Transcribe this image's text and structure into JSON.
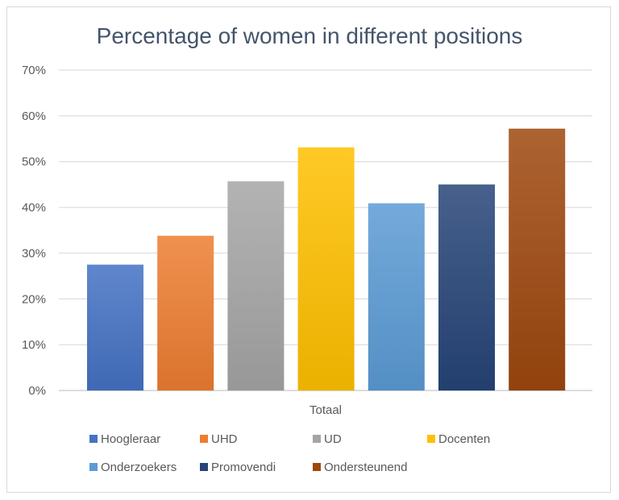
{
  "chart_data": {
    "type": "bar",
    "title": "Percentage of women in different positions",
    "xlabel": "Totaal",
    "ylabel": "",
    "ylim": [
      0,
      70
    ],
    "yticks": [
      "0%",
      "10%",
      "20%",
      "30%",
      "40%",
      "50%",
      "60%",
      "70%"
    ],
    "grid": true,
    "legend_position": "bottom",
    "categories": [
      "Totaal"
    ],
    "series": [
      {
        "name": "Hoogleraar",
        "values": [
          27.5
        ],
        "color": "#4472c4"
      },
      {
        "name": "UHD",
        "values": [
          33.8
        ],
        "color": "#ed7d31"
      },
      {
        "name": "UD",
        "values": [
          45.7
        ],
        "color": "#a5a5a5"
      },
      {
        "name": "Docenten",
        "values": [
          53.1
        ],
        "color": "#ffc000"
      },
      {
        "name": "Onderzoekers",
        "values": [
          40.9
        ],
        "color": "#5b9bd5"
      },
      {
        "name": "Promovendi",
        "values": [
          45.0
        ],
        "color": "#264478"
      },
      {
        "name": "Ondersteunend",
        "values": [
          57.2
        ],
        "color": "#9e480e"
      }
    ]
  }
}
